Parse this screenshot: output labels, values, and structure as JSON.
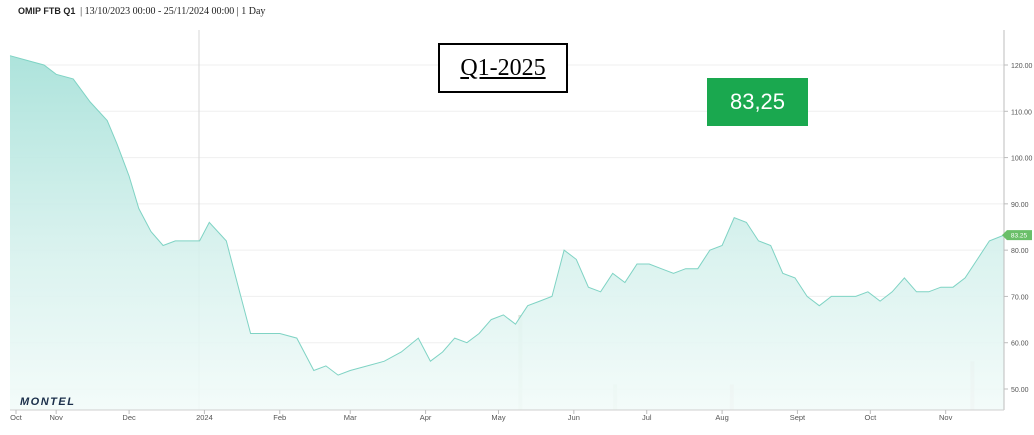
{
  "header": {
    "symbol": "OMIP FTB Q1",
    "range": "| 13/10/2023 00:00 - 25/11/2024 00:00 | 1 Day"
  },
  "title_box": "Q1-2025",
  "value_box": "83,25",
  "logo": "MONTEL",
  "colors": {
    "area_fill": "#c5ece6",
    "line": "#7fd3c4",
    "value_box": "#1aa84f",
    "last_price_tag": "#6abf69",
    "volume_a": "#dfe6dc",
    "volume_b": "#ecd6d8"
  },
  "chart_data": {
    "type": "area",
    "title": "OMIP FTB Q1",
    "xlabel": "",
    "ylabel": "",
    "ylim": [
      45,
      124
    ],
    "yticks": [
      "120.00",
      "110.00",
      "100.00",
      "90.00",
      "80.00",
      "70.00",
      "60.00",
      "50.00"
    ],
    "xticks": [
      "Oct",
      "Nov",
      "Dec",
      "2024",
      "Feb",
      "Mar",
      "Apr",
      "May",
      "Jun",
      "Jul",
      "Aug",
      "Sept",
      "Oct",
      "Nov"
    ],
    "last_value_label": "83.25",
    "series": [
      {
        "x": [
          "2023-10-13",
          "2023-10-20",
          "2023-10-27",
          "2023-11-01",
          "2023-11-08",
          "2023-11-15",
          "2023-11-22",
          "2023-11-26",
          "2023-12-01",
          "2023-12-05",
          "2023-12-10",
          "2023-12-15",
          "2023-12-20",
          "2023-12-25",
          "2023-12-30",
          "2024-01-03",
          "2024-01-10",
          "2024-01-15",
          "2024-01-20",
          "2024-01-25",
          "2024-02-01",
          "2024-02-08",
          "2024-02-15",
          "2024-02-20",
          "2024-02-25",
          "2024-03-01",
          "2024-03-08",
          "2024-03-15",
          "2024-03-22",
          "2024-03-29",
          "2024-04-03",
          "2024-04-08",
          "2024-04-13",
          "2024-04-18",
          "2024-04-23",
          "2024-04-28",
          "2024-05-03",
          "2024-05-08",
          "2024-05-13",
          "2024-05-18",
          "2024-05-23",
          "2024-05-28",
          "2024-06-02",
          "2024-06-07",
          "2024-06-12",
          "2024-06-17",
          "2024-06-22",
          "2024-06-27",
          "2024-07-02",
          "2024-07-07",
          "2024-07-12",
          "2024-07-17",
          "2024-07-22",
          "2024-07-27",
          "2024-08-01",
          "2024-08-06",
          "2024-08-11",
          "2024-08-16",
          "2024-08-21",
          "2024-08-26",
          "2024-08-31",
          "2024-09-05",
          "2024-09-10",
          "2024-09-15",
          "2024-09-20",
          "2024-09-25",
          "2024-09-30",
          "2024-10-05",
          "2024-10-10",
          "2024-10-15",
          "2024-10-20",
          "2024-10-25",
          "2024-10-30",
          "2024-11-04",
          "2024-11-09",
          "2024-11-14",
          "2024-11-19",
          "2024-11-25"
        ],
        "values": [
          122,
          121,
          120,
          118,
          117,
          112,
          108,
          103,
          96,
          89,
          84,
          81,
          82,
          82,
          82,
          86,
          82,
          72,
          62,
          62,
          62,
          61,
          54,
          55,
          53,
          54,
          55,
          56,
          58,
          61,
          56,
          58,
          61,
          60,
          62,
          65,
          66,
          64,
          68,
          69,
          70,
          80,
          78,
          72,
          71,
          75,
          73,
          77,
          77,
          76,
          75,
          76,
          76,
          80,
          81,
          87,
          86,
          82,
          81,
          75,
          74,
          70,
          68,
          70,
          70,
          70,
          71,
          69,
          71,
          74,
          71,
          71,
          72,
          72,
          74,
          78,
          82,
          83.25
        ]
      }
    ],
    "volume_bars": [
      {
        "x": "2024-05-10",
        "value": 66
      },
      {
        "x": "2024-06-18",
        "value": 51
      },
      {
        "x": "2024-08-05",
        "value": 51
      },
      {
        "x": "2024-11-12",
        "value": 56
      }
    ]
  }
}
